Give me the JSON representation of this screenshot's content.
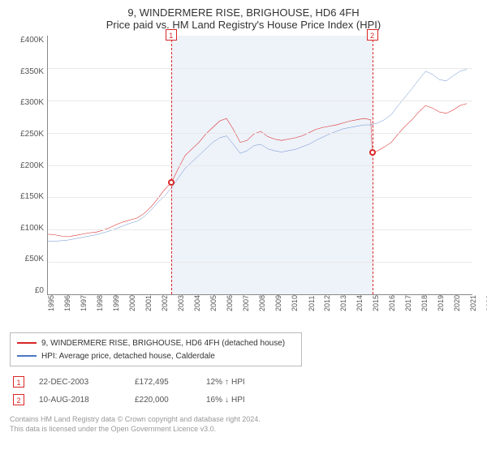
{
  "title_line1": "9, WINDERMERE RISE, BRIGHOUSE, HD6 4FH",
  "title_line2": "Price paid vs. HM Land Registry's House Price Index (HPI)",
  "chart": {
    "type": "line",
    "background_color": "#ffffff",
    "grid_color": "#e8e8e8",
    "shaded_color": "#eef2f9",
    "x_min": 1995,
    "x_max": 2025.9,
    "y_min": 0,
    "y_max": 400000,
    "y_ticks": [
      "£400K",
      "£350K",
      "£300K",
      "£250K",
      "£200K",
      "£150K",
      "£100K",
      "£50K",
      "£0"
    ],
    "x_ticks": [
      "1995",
      "1996",
      "1997",
      "1998",
      "1999",
      "2000",
      "2001",
      "2002",
      "2003",
      "2004",
      "2005",
      "2006",
      "2007",
      "2008",
      "2009",
      "2010",
      "2011",
      "2012",
      "2013",
      "2014",
      "2015",
      "2016",
      "2017",
      "2018",
      "2019",
      "2020",
      "2021",
      "2022",
      "2023",
      "2024",
      "2025"
    ],
    "series": [
      {
        "name": "9, WINDERMERE RISE, BRIGHOUSE, HD6 4FH (detached house)",
        "color": "#d92626",
        "line_width": 1.8,
        "data": [
          [
            1995.0,
            93000
          ],
          [
            1995.5,
            92000
          ],
          [
            1996.0,
            90000
          ],
          [
            1996.5,
            89000
          ],
          [
            1997.0,
            91000
          ],
          [
            1997.5,
            93000
          ],
          [
            1998.0,
            95000
          ],
          [
            1998.5,
            96000
          ],
          [
            1999.0,
            99000
          ],
          [
            1999.5,
            103000
          ],
          [
            2000.0,
            108000
          ],
          [
            2000.5,
            112000
          ],
          [
            2001.0,
            115000
          ],
          [
            2001.5,
            118000
          ],
          [
            2002.0,
            125000
          ],
          [
            2002.5,
            135000
          ],
          [
            2003.0,
            148000
          ],
          [
            2003.5,
            162000
          ],
          [
            2003.97,
            172495
          ],
          [
            2004.0,
            173000
          ],
          [
            2004.5,
            195000
          ],
          [
            2005.0,
            215000
          ],
          [
            2005.5,
            225000
          ],
          [
            2006.0,
            235000
          ],
          [
            2006.5,
            248000
          ],
          [
            2007.0,
            258000
          ],
          [
            2007.5,
            268000
          ],
          [
            2008.0,
            272000
          ],
          [
            2008.5,
            255000
          ],
          [
            2009.0,
            235000
          ],
          [
            2009.5,
            238000
          ],
          [
            2010.0,
            248000
          ],
          [
            2010.5,
            252000
          ],
          [
            2011.0,
            244000
          ],
          [
            2011.5,
            240000
          ],
          [
            2012.0,
            238000
          ],
          [
            2012.5,
            240000
          ],
          [
            2013.0,
            242000
          ],
          [
            2013.5,
            245000
          ],
          [
            2014.0,
            250000
          ],
          [
            2014.5,
            255000
          ],
          [
            2015.0,
            258000
          ],
          [
            2015.5,
            260000
          ],
          [
            2016.0,
            262000
          ],
          [
            2016.5,
            265000
          ],
          [
            2017.0,
            268000
          ],
          [
            2017.5,
            270000
          ],
          [
            2018.0,
            272000
          ],
          [
            2018.5,
            270000
          ],
          [
            2018.61,
            220000
          ],
          [
            2018.7,
            218000
          ],
          [
            2019.0,
            222000
          ],
          [
            2019.5,
            228000
          ],
          [
            2020.0,
            235000
          ],
          [
            2020.5,
            248000
          ],
          [
            2021.0,
            260000
          ],
          [
            2021.5,
            270000
          ],
          [
            2022.0,
            282000
          ],
          [
            2022.5,
            292000
          ],
          [
            2023.0,
            288000
          ],
          [
            2023.5,
            282000
          ],
          [
            2024.0,
            280000
          ],
          [
            2024.5,
            285000
          ],
          [
            2025.0,
            292000
          ],
          [
            2025.5,
            295000
          ]
        ]
      },
      {
        "name": "HPI: Average price, detached house, Calderdale",
        "color": "#4a78c4",
        "line_width": 1.4,
        "data": [
          [
            1995.0,
            82000
          ],
          [
            1995.5,
            82000
          ],
          [
            1996.0,
            83000
          ],
          [
            1996.5,
            84000
          ],
          [
            1997.0,
            86000
          ],
          [
            1997.5,
            88000
          ],
          [
            1998.0,
            90000
          ],
          [
            1998.5,
            92000
          ],
          [
            1999.0,
            95000
          ],
          [
            1999.5,
            98000
          ],
          [
            2000.0,
            102000
          ],
          [
            2000.5,
            106000
          ],
          [
            2001.0,
            110000
          ],
          [
            2001.5,
            113000
          ],
          [
            2002.0,
            120000
          ],
          [
            2002.5,
            130000
          ],
          [
            2003.0,
            142000
          ],
          [
            2003.5,
            152000
          ],
          [
            2004.0,
            165000
          ],
          [
            2004.5,
            180000
          ],
          [
            2005.0,
            195000
          ],
          [
            2005.5,
            205000
          ],
          [
            2006.0,
            215000
          ],
          [
            2006.5,
            225000
          ],
          [
            2007.0,
            235000
          ],
          [
            2007.5,
            242000
          ],
          [
            2008.0,
            245000
          ],
          [
            2008.5,
            232000
          ],
          [
            2009.0,
            218000
          ],
          [
            2009.5,
            222000
          ],
          [
            2010.0,
            230000
          ],
          [
            2010.5,
            232000
          ],
          [
            2011.0,
            225000
          ],
          [
            2011.5,
            222000
          ],
          [
            2012.0,
            220000
          ],
          [
            2012.5,
            222000
          ],
          [
            2013.0,
            224000
          ],
          [
            2013.5,
            228000
          ],
          [
            2014.0,
            232000
          ],
          [
            2014.5,
            238000
          ],
          [
            2015.0,
            243000
          ],
          [
            2015.5,
            248000
          ],
          [
            2016.0,
            252000
          ],
          [
            2016.5,
            256000
          ],
          [
            2017.0,
            258000
          ],
          [
            2017.5,
            260000
          ],
          [
            2018.0,
            262000
          ],
          [
            2018.5,
            262000
          ],
          [
            2019.0,
            265000
          ],
          [
            2019.5,
            270000
          ],
          [
            2020.0,
            278000
          ],
          [
            2020.5,
            292000
          ],
          [
            2021.0,
            305000
          ],
          [
            2021.5,
            318000
          ],
          [
            2022.0,
            332000
          ],
          [
            2022.5,
            345000
          ],
          [
            2023.0,
            340000
          ],
          [
            2023.5,
            332000
          ],
          [
            2024.0,
            330000
          ],
          [
            2024.5,
            338000
          ],
          [
            2025.0,
            345000
          ],
          [
            2025.5,
            348000
          ]
        ]
      }
    ],
    "markers": [
      {
        "id": "1",
        "x": 2003.97,
        "y": 172495,
        "color": "#d92626"
      },
      {
        "id": "2",
        "x": 2018.61,
        "y": 220000,
        "color": "#d92626"
      }
    ],
    "shaded_range": {
      "x0": 2003.97,
      "x1": 2018.61
    }
  },
  "legend": {
    "items": [
      {
        "label": "9, WINDERMERE RISE, BRIGHOUSE, HD6 4FH (detached house)",
        "color": "#d92626"
      },
      {
        "label": "HPI: Average price, detached house, Calderdale",
        "color": "#4a78c4"
      }
    ]
  },
  "transactions": [
    {
      "id": "1",
      "color": "#d92626",
      "date": "22-DEC-2003",
      "price": "£172,495",
      "delta_pct": "12%",
      "delta_dir": "↑",
      "delta_label": "HPI"
    },
    {
      "id": "2",
      "color": "#d92626",
      "date": "10-AUG-2018",
      "price": "£220,000",
      "delta_pct": "16%",
      "delta_dir": "↓",
      "delta_label": "HPI"
    }
  ],
  "footnote_line1": "Contains HM Land Registry data © Crown copyright and database right 2024.",
  "footnote_line2": "This data is licensed under the Open Government Licence v3.0."
}
